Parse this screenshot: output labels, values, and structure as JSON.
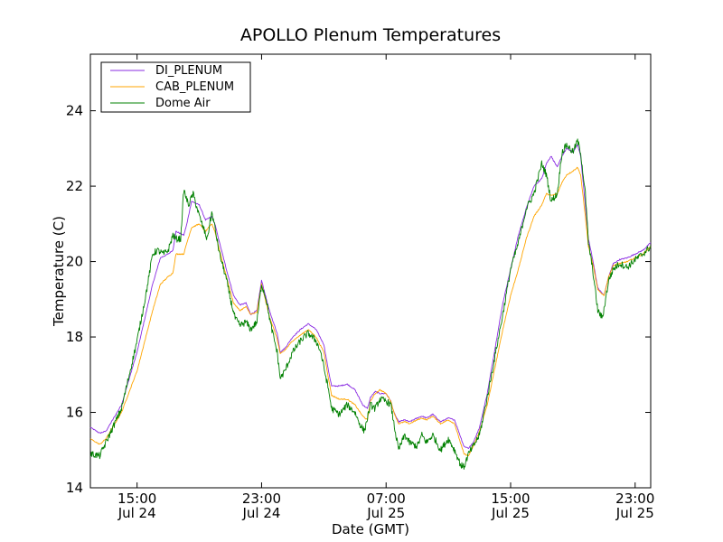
{
  "chart_data": {
    "type": "line",
    "title": "APOLLO Plenum Temperatures",
    "xlabel": "Date (GMT)",
    "ylabel": "Temperature (C)",
    "ylim": [
      14,
      25.5
    ],
    "xlim_hours": [
      0,
      36
    ],
    "yticks": [
      14,
      16,
      18,
      20,
      22,
      24
    ],
    "xticks": [
      {
        "hour": 3,
        "time": "15:00",
        "date": "Jul 24"
      },
      {
        "hour": 11,
        "time": "23:00",
        "date": "Jul 24"
      },
      {
        "hour": 19,
        "time": "07:00",
        "date": "Jul 25"
      },
      {
        "hour": 27,
        "time": "15:00",
        "date": "Jul 25"
      },
      {
        "hour": 35,
        "time": "23:00",
        "date": "Jul 25"
      }
    ],
    "x_unit": "hours since Jul 24 12:00 GMT",
    "legend_position": "top-left",
    "series": [
      {
        "name": "DI_PLENUM",
        "color": "#8a2be2",
        "points": [
          [
            0,
            15.6
          ],
          [
            0.6,
            15.45
          ],
          [
            1,
            15.5
          ],
          [
            2,
            16.2
          ],
          [
            3,
            17.6
          ],
          [
            4,
            19.4
          ],
          [
            4.5,
            20.1
          ],
          [
            5,
            20.2
          ],
          [
            5.3,
            20.3
          ],
          [
            5.5,
            20.8
          ],
          [
            6,
            20.7
          ],
          [
            6.2,
            21.0
          ],
          [
            6.5,
            21.6
          ],
          [
            7,
            21.5
          ],
          [
            7.4,
            21.1
          ],
          [
            7.8,
            21.2
          ],
          [
            8,
            21.0
          ],
          [
            8.3,
            20.5
          ],
          [
            8.8,
            19.7
          ],
          [
            9.2,
            19.1
          ],
          [
            9.6,
            18.85
          ],
          [
            10,
            18.9
          ],
          [
            10.3,
            18.6
          ],
          [
            10.7,
            18.7
          ],
          [
            11,
            19.5
          ],
          [
            11.5,
            18.7
          ],
          [
            12,
            18.1
          ],
          [
            12.2,
            17.6
          ],
          [
            12.5,
            17.7
          ],
          [
            13,
            18.0
          ],
          [
            13.5,
            18.2
          ],
          [
            14,
            18.35
          ],
          [
            14.5,
            18.2
          ],
          [
            15,
            17.8
          ],
          [
            15.3,
            17.1
          ],
          [
            15.5,
            16.7
          ],
          [
            16,
            16.7
          ],
          [
            16.5,
            16.75
          ],
          [
            17,
            16.6
          ],
          [
            17.5,
            16.2
          ],
          [
            17.8,
            16.1
          ],
          [
            18,
            16.4
          ],
          [
            18.3,
            16.55
          ],
          [
            18.6,
            16.5
          ],
          [
            19,
            16.5
          ],
          [
            19.3,
            16.3
          ],
          [
            19.5,
            16.0
          ],
          [
            19.8,
            15.75
          ],
          [
            20.2,
            15.8
          ],
          [
            20.5,
            15.75
          ],
          [
            21,
            15.85
          ],
          [
            21.3,
            15.9
          ],
          [
            21.6,
            15.85
          ],
          [
            22,
            15.95
          ],
          [
            22.5,
            15.75
          ],
          [
            23,
            15.85
          ],
          [
            23.4,
            15.8
          ],
          [
            24,
            15.1
          ],
          [
            24.3,
            15.05
          ],
          [
            24.6,
            15.2
          ],
          [
            25,
            15.6
          ],
          [
            25.5,
            16.5
          ],
          [
            26,
            17.7
          ],
          [
            26.5,
            18.9
          ],
          [
            27,
            19.8
          ],
          [
            27.5,
            20.7
          ],
          [
            28,
            21.4
          ],
          [
            28.5,
            22.0
          ],
          [
            29,
            22.2
          ],
          [
            29.3,
            22.6
          ],
          [
            29.6,
            22.8
          ],
          [
            30,
            22.5
          ],
          [
            30.3,
            22.8
          ],
          [
            30.6,
            23.0
          ],
          [
            31,
            22.9
          ],
          [
            31.3,
            23.1
          ],
          [
            31.5,
            22.8
          ],
          [
            31.8,
            21.5
          ],
          [
            32,
            20.6
          ],
          [
            32.3,
            20.0
          ],
          [
            32.6,
            19.3
          ],
          [
            33,
            19.1
          ],
          [
            33.3,
            19.6
          ],
          [
            33.6,
            19.95
          ],
          [
            34,
            20.05
          ],
          [
            34.5,
            20.1
          ],
          [
            35,
            20.2
          ],
          [
            35.5,
            20.3
          ],
          [
            36,
            20.5
          ]
        ]
      },
      {
        "name": "CAB_PLENUM",
        "color": "#ffa500",
        "points": [
          [
            0,
            15.3
          ],
          [
            0.6,
            15.15
          ],
          [
            1,
            15.3
          ],
          [
            2,
            16.0
          ],
          [
            3,
            17.1
          ],
          [
            4,
            18.7
          ],
          [
            4.5,
            19.4
          ],
          [
            5,
            19.6
          ],
          [
            5.3,
            19.7
          ],
          [
            5.5,
            20.2
          ],
          [
            6,
            20.2
          ],
          [
            6.2,
            20.5
          ],
          [
            6.5,
            20.9
          ],
          [
            7,
            21.0
          ],
          [
            7.4,
            20.8
          ],
          [
            7.8,
            21.0
          ],
          [
            8,
            20.8
          ],
          [
            8.3,
            20.3
          ],
          [
            8.8,
            19.5
          ],
          [
            9.2,
            18.9
          ],
          [
            9.6,
            18.7
          ],
          [
            10,
            18.8
          ],
          [
            10.3,
            18.6
          ],
          [
            10.7,
            18.65
          ],
          [
            11,
            19.4
          ],
          [
            11.5,
            18.55
          ],
          [
            12,
            17.95
          ],
          [
            12.2,
            17.55
          ],
          [
            12.5,
            17.65
          ],
          [
            13,
            17.9
          ],
          [
            13.5,
            18.05
          ],
          [
            14,
            18.2
          ],
          [
            14.5,
            18.0
          ],
          [
            15,
            17.6
          ],
          [
            15.3,
            16.9
          ],
          [
            15.5,
            16.45
          ],
          [
            16,
            16.35
          ],
          [
            16.5,
            16.35
          ],
          [
            17,
            16.2
          ],
          [
            17.5,
            15.9
          ],
          [
            17.8,
            15.8
          ],
          [
            18,
            16.3
          ],
          [
            18.3,
            16.5
          ],
          [
            18.6,
            16.6
          ],
          [
            19,
            16.5
          ],
          [
            19.3,
            16.3
          ],
          [
            19.5,
            16.0
          ],
          [
            19.8,
            15.7
          ],
          [
            20.2,
            15.75
          ],
          [
            20.5,
            15.7
          ],
          [
            21,
            15.8
          ],
          [
            21.3,
            15.85
          ],
          [
            21.6,
            15.8
          ],
          [
            22,
            15.9
          ],
          [
            22.5,
            15.7
          ],
          [
            23,
            15.8
          ],
          [
            23.4,
            15.7
          ],
          [
            24,
            14.9
          ],
          [
            24.3,
            14.85
          ],
          [
            24.6,
            15.1
          ],
          [
            25,
            15.5
          ],
          [
            25.5,
            16.2
          ],
          [
            26,
            17.2
          ],
          [
            26.5,
            18.2
          ],
          [
            27,
            19.1
          ],
          [
            27.5,
            19.8
          ],
          [
            28,
            20.6
          ],
          [
            28.5,
            21.2
          ],
          [
            29,
            21.5
          ],
          [
            29.3,
            21.8
          ],
          [
            29.6,
            21.75
          ],
          [
            30,
            21.8
          ],
          [
            30.3,
            22.1
          ],
          [
            30.6,
            22.3
          ],
          [
            31,
            22.4
          ],
          [
            31.3,
            22.5
          ],
          [
            31.5,
            22.3
          ],
          [
            31.8,
            21.2
          ],
          [
            32,
            20.4
          ],
          [
            32.3,
            19.9
          ],
          [
            32.6,
            19.25
          ],
          [
            33,
            19.1
          ],
          [
            33.3,
            19.6
          ],
          [
            33.6,
            19.9
          ],
          [
            34,
            19.95
          ],
          [
            34.5,
            20.0
          ],
          [
            35,
            20.1
          ],
          [
            35.5,
            20.2
          ],
          [
            36,
            20.4
          ]
        ]
      },
      {
        "name": "Dome Air",
        "color": "#008000",
        "points": [
          [
            0,
            14.9
          ],
          [
            0.6,
            14.85
          ],
          [
            1,
            15.2
          ],
          [
            2,
            16.1
          ],
          [
            3,
            17.9
          ],
          [
            3.6,
            19.2
          ],
          [
            4,
            20.2
          ],
          [
            4.3,
            20.3
          ],
          [
            4.7,
            20.2
          ],
          [
            5,
            20.3
          ],
          [
            5.3,
            20.7
          ],
          [
            5.5,
            20.6
          ],
          [
            5.8,
            20.6
          ],
          [
            6,
            21.9
          ],
          [
            6.3,
            21.5
          ],
          [
            6.6,
            21.8
          ],
          [
            7,
            21.2
          ],
          [
            7.5,
            20.6
          ],
          [
            7.8,
            21.3
          ],
          [
            8,
            20.9
          ],
          [
            8.3,
            20.2
          ],
          [
            8.7,
            19.6
          ],
          [
            9,
            19.0
          ],
          [
            9.3,
            18.5
          ],
          [
            9.6,
            18.3
          ],
          [
            10,
            18.4
          ],
          [
            10.3,
            18.2
          ],
          [
            10.7,
            18.4
          ],
          [
            11,
            19.4
          ],
          [
            11.3,
            19.0
          ],
          [
            11.6,
            18.3
          ],
          [
            12,
            17.6
          ],
          [
            12.2,
            16.9
          ],
          [
            12.5,
            17.1
          ],
          [
            13,
            17.6
          ],
          [
            13.5,
            17.9
          ],
          [
            14,
            18.1
          ],
          [
            14.5,
            17.9
          ],
          [
            14.8,
            17.6
          ],
          [
            15,
            17.2
          ],
          [
            15.3,
            16.6
          ],
          [
            15.5,
            16.1
          ],
          [
            16,
            15.95
          ],
          [
            16.5,
            16.2
          ],
          [
            17,
            16.0
          ],
          [
            17.3,
            15.7
          ],
          [
            17.6,
            15.5
          ],
          [
            18,
            16.2
          ],
          [
            18.3,
            16.1
          ],
          [
            18.6,
            16.35
          ],
          [
            19,
            16.3
          ],
          [
            19.3,
            16.2
          ],
          [
            19.5,
            15.7
          ],
          [
            19.8,
            15.0
          ],
          [
            20.2,
            15.4
          ],
          [
            20.5,
            15.2
          ],
          [
            21,
            15.1
          ],
          [
            21.3,
            15.4
          ],
          [
            21.6,
            15.2
          ],
          [
            22,
            15.4
          ],
          [
            22.5,
            15.0
          ],
          [
            23,
            15.3
          ],
          [
            23.4,
            15.0
          ],
          [
            23.8,
            14.6
          ],
          [
            24,
            14.55
          ],
          [
            24.3,
            14.9
          ],
          [
            24.6,
            15.1
          ],
          [
            25,
            15.4
          ],
          [
            25.5,
            16.4
          ],
          [
            26,
            17.5
          ],
          [
            26.5,
            18.6
          ],
          [
            27,
            19.8
          ],
          [
            27.5,
            20.5
          ],
          [
            28,
            21.4
          ],
          [
            28.5,
            21.8
          ],
          [
            29,
            22.6
          ],
          [
            29.3,
            22.3
          ],
          [
            29.6,
            21.6
          ],
          [
            30,
            21.8
          ],
          [
            30.3,
            22.9
          ],
          [
            30.6,
            23.1
          ],
          [
            31,
            22.9
          ],
          [
            31.3,
            23.2
          ],
          [
            31.5,
            22.9
          ],
          [
            31.8,
            21.8
          ],
          [
            32,
            20.5
          ],
          [
            32.3,
            19.7
          ],
          [
            32.6,
            18.7
          ],
          [
            32.9,
            18.5
          ],
          [
            33.3,
            19.5
          ],
          [
            33.6,
            19.8
          ],
          [
            34,
            19.95
          ],
          [
            34.5,
            19.85
          ],
          [
            35,
            20.05
          ],
          [
            35.5,
            20.2
          ],
          [
            36,
            20.4
          ]
        ]
      }
    ]
  }
}
